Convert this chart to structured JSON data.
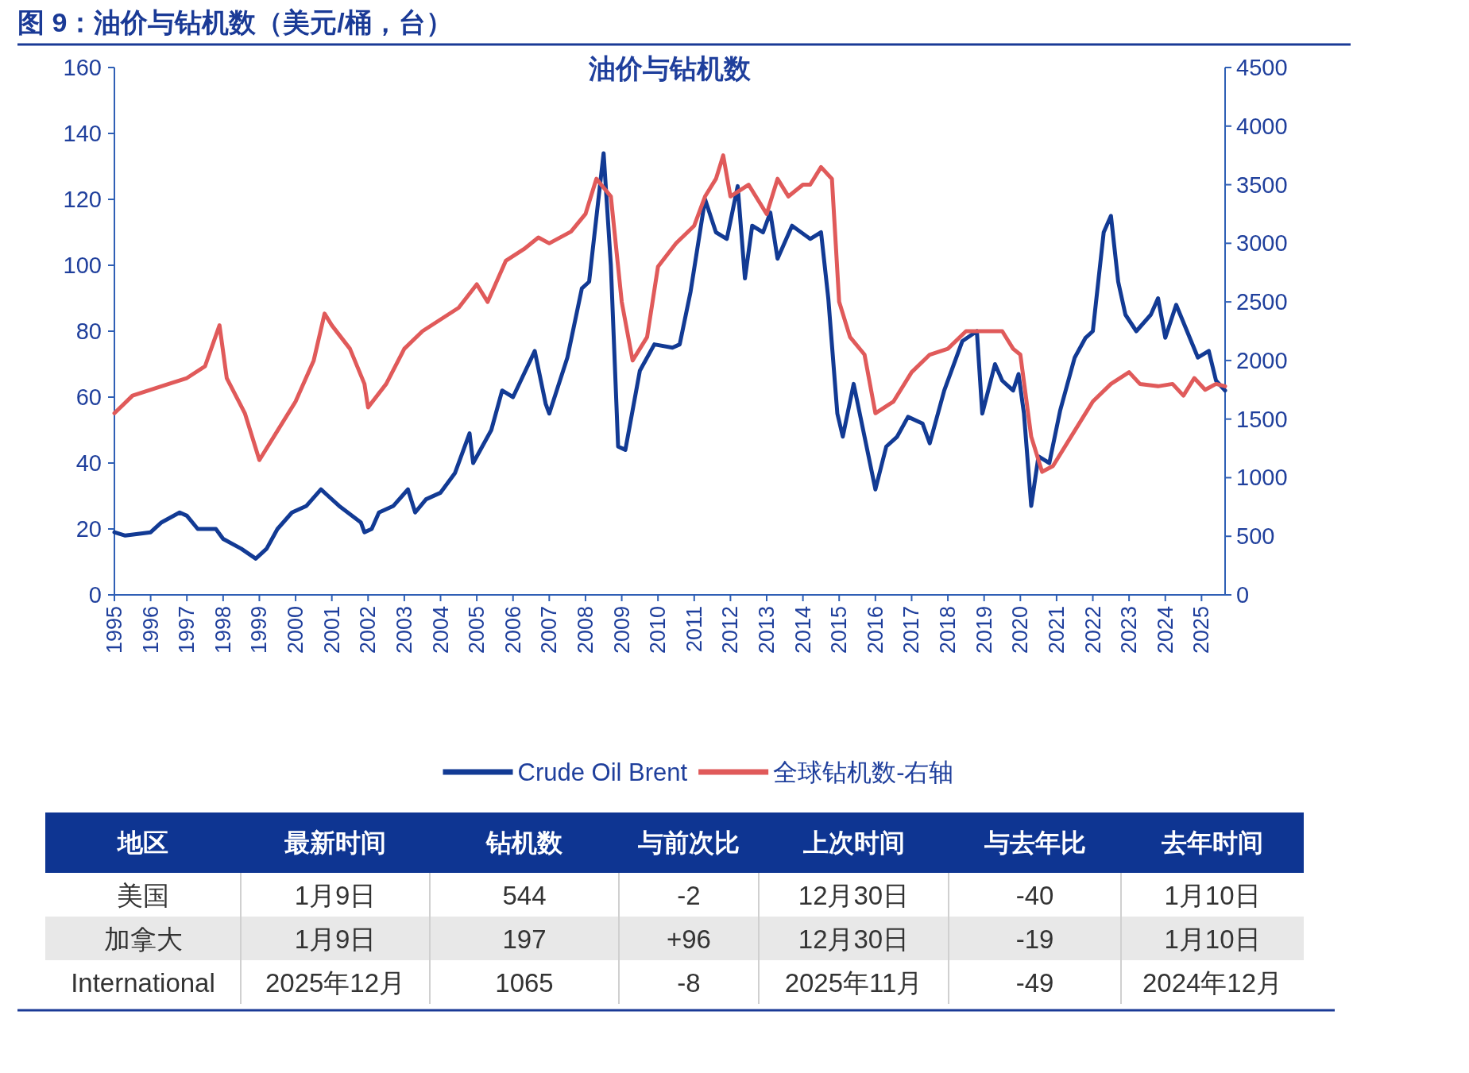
{
  "chart_data": [
    {
      "type": "line",
      "title": "图 9：油价与钻机数（美元/桶，台）",
      "subtitle": "油价与钻机数",
      "xlim": [
        1995,
        2025.65
      ],
      "xticks": [
        1995,
        1996,
        1997,
        1998,
        1999,
        2000,
        2001,
        2002,
        2003,
        2004,
        2005,
        2006,
        2007,
        2008,
        2009,
        2010,
        2011,
        2012,
        2013,
        2014,
        2015,
        2016,
        2017,
        2018,
        2019,
        2020,
        2021,
        2022,
        2023,
        2024,
        2025
      ],
      "ylim": [
        0,
        160
      ],
      "yticks": [
        0,
        20,
        40,
        60,
        80,
        100,
        120,
        140,
        160
      ],
      "y2lim": [
        0,
        4500
      ],
      "y2ticks": [
        0,
        500,
        1000,
        1500,
        2000,
        2500,
        3000,
        3500,
        4000,
        4500
      ],
      "legend": "bottom",
      "grid": false,
      "marker": "none",
      "series": [
        {
          "name": "Crude Oil Brent",
          "color": "#123a94",
          "x": [
            1995.0,
            1995.3,
            1996.0,
            1996.3,
            1996.8,
            1997.0,
            1997.3,
            1997.8,
            1998.0,
            1998.5,
            1998.9,
            1999.2,
            1999.5,
            1999.9,
            2000.3,
            2000.7,
            2000.9,
            2001.2,
            2001.8,
            2001.9,
            2002.1,
            2002.3,
            2002.7,
            2003.1,
            2003.3,
            2003.6,
            2004.0,
            2004.4,
            2004.8,
            2004.9,
            2005.4,
            2005.7,
            2006.0,
            2006.6,
            2006.9,
            2007.0,
            2007.5,
            2007.9,
            2008.1,
            2008.5,
            2008.7,
            2008.9,
            2009.1,
            2009.5,
            2009.9,
            2010.4,
            2010.6,
            2010.9,
            2011.3,
            2011.6,
            2011.9,
            2012.2,
            2012.4,
            2012.6,
            2012.9,
            2013.1,
            2013.3,
            2013.7,
            2014.2,
            2014.5,
            2014.7,
            2014.95,
            2015.1,
            2015.4,
            2015.7,
            2016.0,
            2016.3,
            2016.6,
            2016.9,
            2017.3,
            2017.5,
            2017.9,
            2018.4,
            2018.8,
            2018.95,
            2019.3,
            2019.5,
            2019.8,
            2019.95,
            2020.1,
            2020.3,
            2020.5,
            2020.8,
            2021.1,
            2021.5,
            2021.8,
            2022.0,
            2022.3,
            2022.5,
            2022.7,
            2022.9,
            2023.2,
            2023.6,
            2023.8,
            2024.0,
            2024.3,
            2024.6,
            2024.9,
            2025.2,
            2025.4,
            2025.65
          ],
          "values": [
            19,
            18,
            19,
            22,
            25,
            24,
            20,
            20,
            17,
            14,
            11,
            14,
            20,
            25,
            27,
            32,
            30,
            27,
            22,
            19,
            20,
            25,
            27,
            32,
            25,
            29,
            31,
            37,
            49,
            40,
            50,
            62,
            60,
            74,
            58,
            55,
            72,
            93,
            95,
            134,
            100,
            45,
            44,
            68,
            76,
            75,
            76,
            92,
            120,
            110,
            108,
            124,
            96,
            112,
            110,
            116,
            102,
            112,
            108,
            110,
            90,
            55,
            48,
            64,
            48,
            32,
            45,
            48,
            54,
            52,
            46,
            62,
            77,
            80,
            55,
            70,
            65,
            62,
            67,
            55,
            27,
            42,
            40,
            56,
            72,
            78,
            80,
            110,
            115,
            95,
            85,
            80,
            85,
            90,
            78,
            88,
            80,
            72,
            74,
            65,
            62
          ]
        },
        {
          "name": "全球钻机数-右轴",
          "color": "#e05a5a",
          "axis": "y2",
          "x": [
            1995.0,
            1995.5,
            1996.5,
            1997.0,
            1997.5,
            1997.9,
            1998.1,
            1998.6,
            1999.0,
            1999.5,
            2000.0,
            2000.5,
            2000.8,
            2001.0,
            2001.5,
            2001.9,
            2002.0,
            2002.5,
            2003.0,
            2003.5,
            2004.0,
            2004.5,
            2005.0,
            2005.3,
            2005.8,
            2006.3,
            2006.7,
            2007.0,
            2007.6,
            2008.0,
            2008.3,
            2008.7,
            2009.0,
            2009.3,
            2009.7,
            2010.0,
            2010.5,
            2011.0,
            2011.3,
            2011.6,
            2011.8,
            2012.0,
            2012.5,
            2013.0,
            2013.3,
            2013.6,
            2014.0,
            2014.2,
            2014.5,
            2014.8,
            2015.0,
            2015.3,
            2015.7,
            2016.0,
            2016.5,
            2017.0,
            2017.5,
            2018.0,
            2018.5,
            2019.0,
            2019.5,
            2019.8,
            2020.0,
            2020.3,
            2020.6,
            2020.9,
            2021.3,
            2021.7,
            2022.0,
            2022.5,
            2023.0,
            2023.3,
            2023.8,
            2024.2,
            2024.5,
            2024.8,
            2025.1,
            2025.4,
            2025.65
          ],
          "values": [
            1550,
            1700,
            1800,
            1850,
            1950,
            2300,
            1850,
            1550,
            1150,
            1400,
            1650,
            2000,
            2400,
            2300,
            2100,
            1800,
            1600,
            1800,
            2100,
            2250,
            2350,
            2450,
            2650,
            2500,
            2850,
            2950,
            3050,
            3000,
            3100,
            3250,
            3550,
            3400,
            2500,
            2000,
            2200,
            2800,
            3000,
            3150,
            3400,
            3550,
            3750,
            3400,
            3500,
            3250,
            3550,
            3400,
            3500,
            3500,
            3650,
            3550,
            2500,
            2200,
            2050,
            1550,
            1650,
            1900,
            2050,
            2100,
            2250,
            2250,
            2250,
            2100,
            2050,
            1350,
            1050,
            1100,
            1300,
            1500,
            1650,
            1800,
            1900,
            1800,
            1780,
            1800,
            1700,
            1850,
            1750,
            1800,
            1780
          ]
        }
      ]
    },
    {
      "type": "other",
      "annotations": [
        "地区",
        "最新时间",
        "钻机数",
        "与前次比",
        "上次时间",
        "与去年比",
        "去年时间",
        "美国",
        "1月9日",
        "544",
        "-2",
        "12月30日",
        "-40",
        "1月10日",
        "加拿大",
        "1月9日",
        "197",
        "+96",
        "12月30日",
        "-19",
        "1月10日",
        "International",
        "2025年12月",
        "1065",
        "-8",
        "2025年11月",
        "-49",
        "2024年12月"
      ]
    }
  ]
}
